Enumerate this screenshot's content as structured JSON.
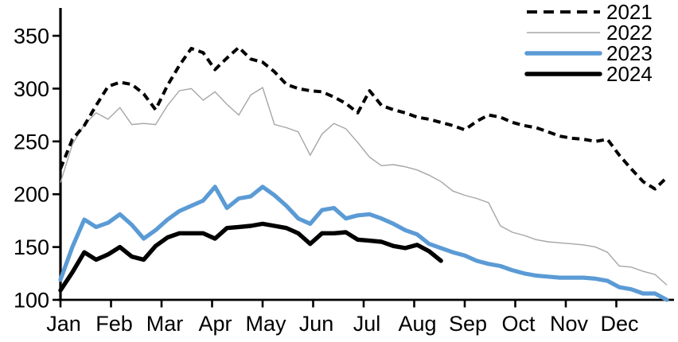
{
  "chart_data": {
    "type": "line",
    "title": "",
    "xlabel": "",
    "ylabel": "",
    "x_months": [
      "Jan",
      "Feb",
      "Mar",
      "Apr",
      "May",
      "Jun",
      "Jul",
      "Aug",
      "Sep",
      "Oct",
      "Nov",
      "Dec"
    ],
    "y_ticks": [
      "100",
      "150",
      "200",
      "250",
      "300",
      "350"
    ],
    "ylim": [
      100,
      375
    ],
    "grid": false,
    "legend_position": "top-right",
    "points_per_year": 52,
    "colors": {
      "black": "#000000",
      "gray": "#a6a6a6",
      "blue": "#5b9bd5"
    },
    "series": [
      {
        "name": "2021",
        "style": "dashed",
        "color": "#000000",
        "values": [
          224,
          252,
          265,
          284,
          302,
          306,
          304,
          295,
          280,
          303,
          322,
          338,
          334,
          318,
          329,
          339,
          328,
          325,
          316,
          304,
          300,
          298,
          297,
          292,
          286,
          277,
          298,
          284,
          280,
          277,
          273,
          271,
          268,
          265,
          261,
          269,
          275,
          273,
          268,
          265,
          263,
          259,
          255,
          253,
          252,
          250,
          252,
          237,
          224,
          212,
          205,
          216
        ]
      },
      {
        "name": "2022",
        "style": "thin",
        "color": "#a6a6a6",
        "values": [
          211,
          247,
          266,
          277,
          271,
          282,
          266,
          267,
          266,
          284,
          298,
          300,
          289,
          297,
          285,
          275,
          294,
          301,
          266,
          263,
          259,
          237,
          257,
          267,
          262,
          249,
          235,
          227,
          228,
          226,
          223,
          218,
          212,
          203,
          199,
          196,
          192,
          170,
          164,
          161,
          157,
          155,
          154,
          153,
          152,
          150,
          145,
          132,
          131,
          127,
          124,
          114
        ]
      },
      {
        "name": "2023",
        "style": "thick",
        "color": "#5b9bd5",
        "values": [
          119,
          150,
          176,
          169,
          173,
          181,
          171,
          158,
          166,
          176,
          184,
          189,
          194,
          207,
          187,
          196,
          198,
          207,
          199,
          189,
          177,
          172,
          185,
          187,
          177,
          180,
          181,
          177,
          172,
          166,
          162,
          153,
          149,
          145,
          142,
          137,
          134,
          132,
          128,
          125,
          123,
          122,
          121,
          121,
          121,
          120,
          118,
          112,
          110,
          106,
          106,
          100
        ]
      },
      {
        "name": "2024",
        "style": "thick",
        "color": "#000000",
        "values": [
          109,
          126,
          145,
          138,
          143,
          150,
          141,
          138,
          151,
          159,
          163,
          163,
          163,
          158,
          168,
          169,
          170,
          172,
          170,
          168,
          163,
          153,
          163,
          163,
          164,
          157,
          156,
          155,
          151,
          149,
          152,
          146,
          137
        ]
      }
    ]
  }
}
